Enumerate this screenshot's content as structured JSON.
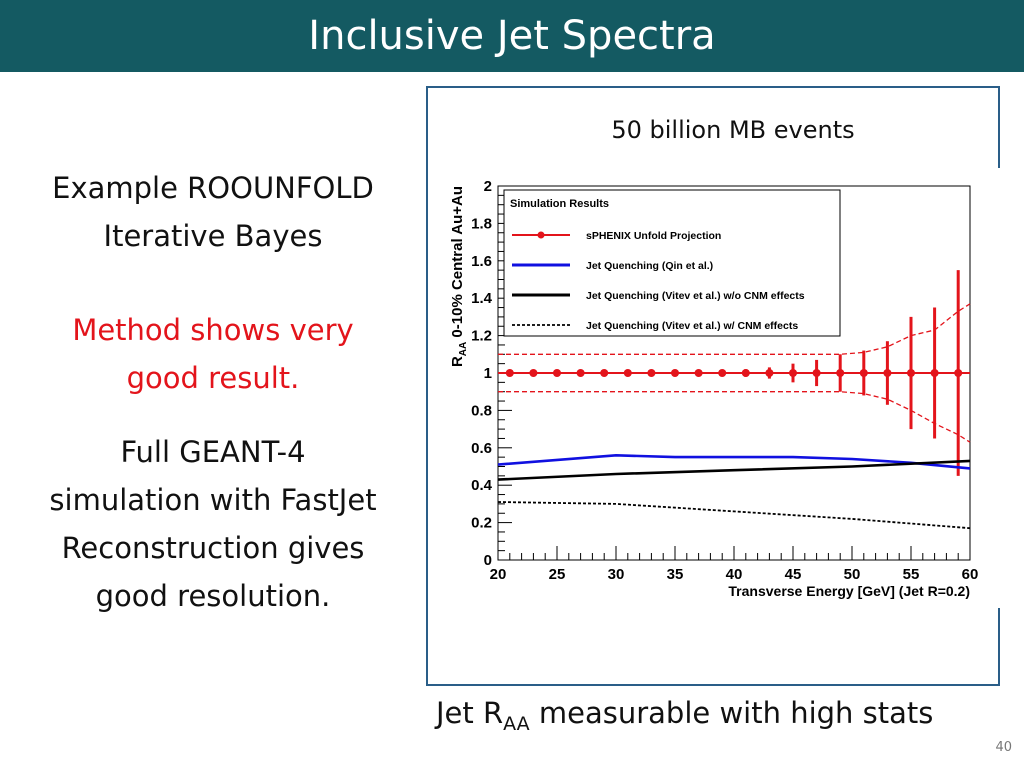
{
  "slide": {
    "title": "Inclusive Jet Spectra",
    "left_text": {
      "line1": "Example ROOUNFOLD",
      "line2": "Iterative Bayes",
      "red_line1": "Method shows very",
      "red_line2": "good result.",
      "para_line1": "Full GEANT-4",
      "para_line2": "simulation with FastJet",
      "para_line3": "Reconstruction gives",
      "para_line4": "good resolution."
    },
    "chart_header": "50 billion MB events",
    "caption_prefix": "Jet R",
    "caption_sub": "AA",
    "caption_suffix": " measurable with high stats",
    "page_number": "40"
  },
  "chart_data": {
    "type": "line",
    "xlabel": "Transverse Energy [GeV] (Jet R=0.2)",
    "ylabel_main": "R",
    "ylabel_sub": "AA",
    "ylabel_rest": " 0-10% Central Au+Au",
    "xlim": [
      20,
      60
    ],
    "ylim": [
      0,
      2
    ],
    "x_ticks": [
      20,
      25,
      30,
      35,
      40,
      45,
      50,
      55,
      60
    ],
    "y_ticks": [
      0,
      0.2,
      0.4,
      0.6,
      0.8,
      1,
      1.2,
      1.4,
      1.6,
      1.8,
      2
    ],
    "y_tick_labels": [
      "0",
      "0.2",
      "0.4",
      "0.6",
      "0.8",
      "1",
      "1.2",
      "1.4",
      "1.6",
      "1.8",
      "2"
    ],
    "legend": {
      "title": "Simulation Results",
      "placement": "top-left"
    },
    "series": [
      {
        "name": "sPHENIX Unfold Projection",
        "style": "points-errorbars",
        "color": "#e3141b",
        "points": [
          {
            "x": 21,
            "y": 1,
            "err": 0.01
          },
          {
            "x": 23,
            "y": 1,
            "err": 0.01
          },
          {
            "x": 25,
            "y": 1,
            "err": 0.01
          },
          {
            "x": 27,
            "y": 1,
            "err": 0.01
          },
          {
            "x": 29,
            "y": 1,
            "err": 0.01
          },
          {
            "x": 31,
            "y": 1,
            "err": 0.01
          },
          {
            "x": 33,
            "y": 1,
            "err": 0.01
          },
          {
            "x": 35,
            "y": 1,
            "err": 0.01
          },
          {
            "x": 37,
            "y": 1,
            "err": 0.01
          },
          {
            "x": 39,
            "y": 1,
            "err": 0.015
          },
          {
            "x": 41,
            "y": 1,
            "err": 0.02
          },
          {
            "x": 43,
            "y": 1,
            "err": 0.03
          },
          {
            "x": 45,
            "y": 1,
            "err": 0.05
          },
          {
            "x": 47,
            "y": 1,
            "err": 0.07
          },
          {
            "x": 49,
            "y": 1,
            "err": 0.1
          },
          {
            "x": 51,
            "y": 1,
            "err": 0.12
          },
          {
            "x": 53,
            "y": 1,
            "err": 0.17
          },
          {
            "x": 55,
            "y": 1,
            "err": 0.3
          },
          {
            "x": 57,
            "y": 1,
            "err": 0.35
          },
          {
            "x": 59,
            "y": 1,
            "err": 0.55
          }
        ]
      },
      {
        "name": "Jet Quenching (Qin et al.)",
        "style": "solid",
        "color": "#1010e0",
        "x": [
          20,
          30,
          35,
          40,
          45,
          50,
          55,
          60
        ],
        "values": [
          0.51,
          0.56,
          0.55,
          0.55,
          0.55,
          0.54,
          0.52,
          0.49
        ]
      },
      {
        "name": "Jet Quenching (Vitev et al.) w/o CNM effects",
        "style": "solid",
        "color": "#000000",
        "x": [
          20,
          30,
          40,
          50,
          60
        ],
        "values": [
          0.43,
          0.46,
          0.48,
          0.5,
          0.53
        ]
      },
      {
        "name": "Jet Quenching (Vitev et al.) w/ CNM effects",
        "style": "dotted",
        "color": "#000000",
        "x": [
          20,
          30,
          40,
          50,
          60
        ],
        "values": [
          0.31,
          0.3,
          0.26,
          0.22,
          0.17
        ]
      }
    ],
    "band": {
      "color": "#e3141b",
      "upper": {
        "x": [
          20,
          49,
          51,
          53,
          55,
          57,
          59,
          60
        ],
        "values": [
          1.1,
          1.1,
          1.11,
          1.14,
          1.2,
          1.23,
          1.33,
          1.37
        ]
      },
      "lower": {
        "x": [
          20,
          49,
          51,
          53,
          55,
          57,
          59,
          60
        ],
        "values": [
          0.9,
          0.9,
          0.89,
          0.86,
          0.8,
          0.73,
          0.67,
          0.63
        ]
      }
    }
  }
}
